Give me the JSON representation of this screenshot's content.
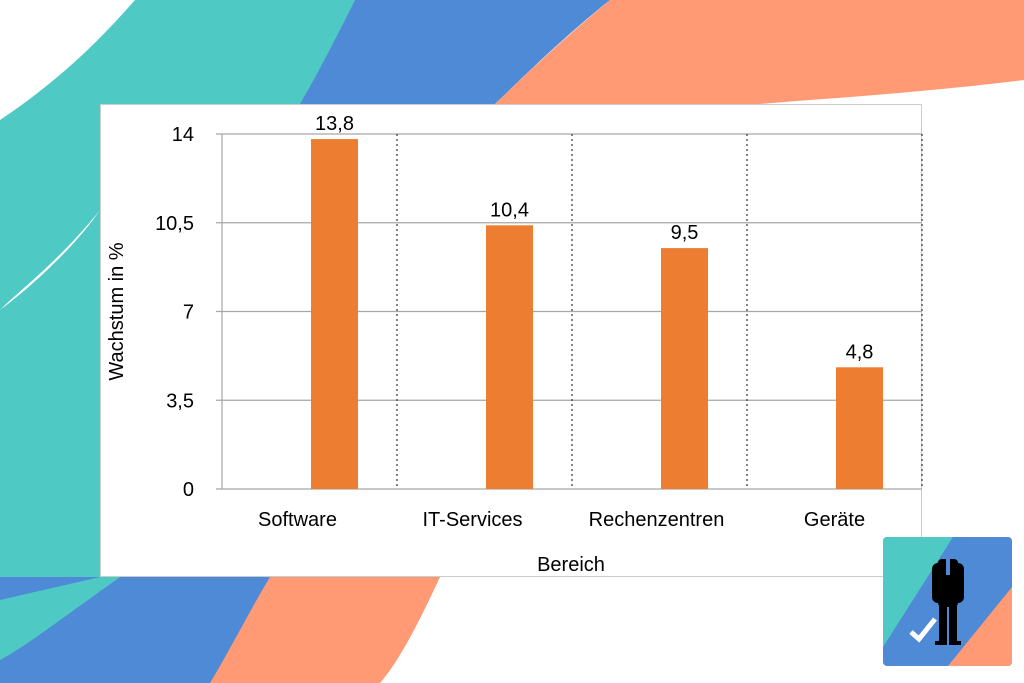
{
  "chart_data": {
    "type": "bar",
    "title": "",
    "xlabel": "Bereich",
    "ylabel": "Wachstum in %",
    "categories": [
      "Software",
      "IT-Services",
      "Rechenzentren",
      "Geräte"
    ],
    "values": [
      13.8,
      10.4,
      9.5,
      4.8
    ],
    "data_labels": [
      "13,8",
      "10,4",
      "9,5",
      "4,8"
    ],
    "yticks": [
      0,
      3.5,
      7,
      10.5,
      14
    ],
    "ytick_labels": [
      "0",
      "3,5",
      "7",
      "10,5",
      "14"
    ],
    "ylim": [
      0,
      14
    ],
    "grid": "horizontal solid, vertical dotted category separators",
    "legend": "none",
    "bar_color": "#ED7D31"
  },
  "colors": {
    "teal": "#4FC9C4",
    "blue": "#4E8AD6",
    "salmon": "#FF9A74"
  },
  "logo": {
    "icon": "businessman-check-icon"
  }
}
